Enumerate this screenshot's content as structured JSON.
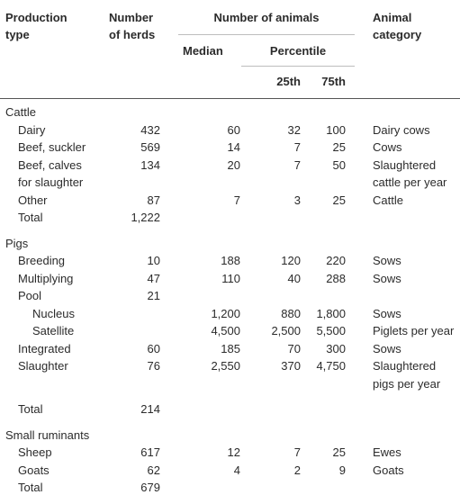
{
  "header": {
    "production_type": [
      "Production",
      "type"
    ],
    "number_of_herds": [
      "Number",
      "of herds"
    ],
    "number_of_animals": "Number of animals",
    "median": "Median",
    "percentile": "Percentile",
    "p25": "25th",
    "p75": "75th",
    "animal_category": [
      "Animal",
      "category"
    ]
  },
  "sections": [
    {
      "name": "Cattle",
      "rows": [
        {
          "type": [
            "Dairy"
          ],
          "herds": "432",
          "median": "60",
          "p25": "32",
          "p75": "100",
          "category": [
            "Dairy cows"
          ]
        },
        {
          "type": [
            "Beef, suckler"
          ],
          "herds": "569",
          "median": "14",
          "p25": "7",
          "p75": "25",
          "category": [
            "Cows"
          ]
        },
        {
          "type": [
            "Beef, calves",
            "for slaughter"
          ],
          "herds": "134",
          "median": "20",
          "p25": "7",
          "p75": "50",
          "category": [
            "Slaughtered",
            "cattle per year"
          ]
        },
        {
          "type": [
            "Other"
          ],
          "herds": "87",
          "median": "7",
          "p25": "3",
          "p75": "25",
          "category": [
            "Cattle"
          ]
        },
        {
          "type": [
            "Total"
          ],
          "herds": "1,222",
          "median": "",
          "p25": "",
          "p75": "",
          "category": [
            ""
          ]
        }
      ]
    },
    {
      "name": "Pigs",
      "rows": [
        {
          "type": [
            "Breeding"
          ],
          "herds": "10",
          "median": "188",
          "p25": "120",
          "p75": "220",
          "category": [
            "Sows"
          ]
        },
        {
          "type": [
            "Multiplying"
          ],
          "herds": "47",
          "median": "110",
          "p25": "40",
          "p75": "288",
          "category": [
            "Sows"
          ]
        },
        {
          "type": [
            "Pool"
          ],
          "herds": "21",
          "median": "",
          "p25": "",
          "p75": "",
          "category": [
            ""
          ]
        },
        {
          "type": [
            "Nucleus"
          ],
          "herds": "",
          "median": "1,200",
          "p25": "880",
          "p75": "1,800",
          "category": [
            "Sows"
          ]
        },
        {
          "type": [
            "Satellite"
          ],
          "herds": "",
          "median": "4,500",
          "p25": "2,500",
          "p75": "5,500",
          "category": [
            "Piglets per year"
          ]
        },
        {
          "type": [
            "Integrated"
          ],
          "herds": "60",
          "median": "185",
          "p25": "70",
          "p75": "300",
          "category": [
            "Sows"
          ]
        },
        {
          "type": [
            "Slaughter"
          ],
          "herds": "76",
          "median": "2,550",
          "p25": "370",
          "p75": "4,750",
          "category": [
            "Slaughtered",
            "pigs per year"
          ]
        },
        {
          "type": [
            "Total"
          ],
          "herds": "214",
          "median": "",
          "p25": "",
          "p75": "",
          "category": [
            ""
          ]
        }
      ]
    },
    {
      "name": "Small ruminants",
      "rows": [
        {
          "type": [
            "Sheep"
          ],
          "herds": "617",
          "median": "12",
          "p25": "7",
          "p75": "25",
          "category": [
            "Ewes"
          ]
        },
        {
          "type": [
            "Goats"
          ],
          "herds": "62",
          "median": "4",
          "p25": "2",
          "p75": "9",
          "category": [
            "Goats"
          ]
        },
        {
          "type": [
            "Total"
          ],
          "herds": "679",
          "median": "",
          "p25": "",
          "p75": "",
          "category": [
            ""
          ]
        }
      ]
    }
  ]
}
